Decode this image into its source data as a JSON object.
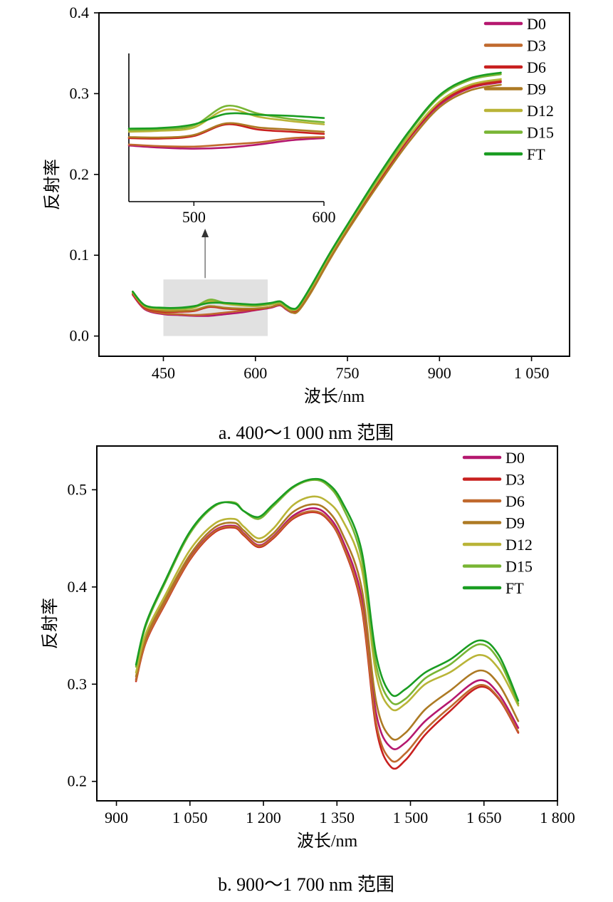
{
  "chart_data": [
    {
      "type": "line",
      "caption": "a. 400～1 000 nm 范围",
      "xlabel": "波长/nm",
      "ylabel": "反射率",
      "xlim": [
        345,
        1112
      ],
      "ylim": [
        -0.025,
        0.4
      ],
      "x_ticks": [
        450,
        600,
        750,
        900,
        1050
      ],
      "x_tick_labels": [
        "450",
        "600",
        "750",
        "900",
        "1 050"
      ],
      "y_ticks": [
        0.0,
        0.1,
        0.2,
        0.3,
        0.4
      ],
      "y_tick_labels": [
        "0.0",
        "0.1",
        "0.2",
        "0.3",
        "0.4"
      ],
      "legend": [
        "D0",
        "D3",
        "D6",
        "D9",
        "D12",
        "D15",
        "FT"
      ],
      "legend_position": "top-right",
      "colors": [
        "#b5186f",
        "#c0692d",
        "#c8201f",
        "#ad7a24",
        "#b9b437",
        "#78b534",
        "#1a9d22"
      ],
      "x": [
        400,
        420,
        450,
        475,
        500,
        525,
        550,
        575,
        600,
        625,
        640,
        650,
        660,
        670,
        690,
        720,
        750,
        800,
        850,
        900,
        950,
        1000
      ],
      "series": [
        {
          "name": "D0",
          "values": [
            0.051,
            0.033,
            0.027,
            0.026,
            0.025,
            0.025,
            0.027,
            0.029,
            0.032,
            0.035,
            0.038,
            0.033,
            0.029,
            0.032,
            0.055,
            0.095,
            0.132,
            0.19,
            0.244,
            0.286,
            0.307,
            0.314
          ]
        },
        {
          "name": "D3",
          "values": [
            0.052,
            0.034,
            0.028,
            0.027,
            0.026,
            0.027,
            0.029,
            0.031,
            0.033,
            0.036,
            0.039,
            0.034,
            0.03,
            0.033,
            0.056,
            0.096,
            0.133,
            0.191,
            0.245,
            0.288,
            0.309,
            0.316
          ]
        },
        {
          "name": "D6",
          "values": [
            0.052,
            0.035,
            0.03,
            0.03,
            0.031,
            0.036,
            0.034,
            0.033,
            0.033,
            0.036,
            0.039,
            0.034,
            0.03,
            0.033,
            0.056,
            0.096,
            0.133,
            0.191,
            0.245,
            0.288,
            0.308,
            0.315
          ]
        },
        {
          "name": "D9",
          "values": [
            0.053,
            0.036,
            0.031,
            0.031,
            0.032,
            0.037,
            0.035,
            0.034,
            0.034,
            0.036,
            0.039,
            0.034,
            0.029,
            0.031,
            0.053,
            0.093,
            0.13,
            0.187,
            0.24,
            0.283,
            0.304,
            0.311
          ]
        },
        {
          "name": "D12",
          "values": [
            0.054,
            0.037,
            0.033,
            0.033,
            0.035,
            0.043,
            0.04,
            0.038,
            0.037,
            0.039,
            0.041,
            0.036,
            0.032,
            0.035,
            0.058,
            0.098,
            0.135,
            0.193,
            0.247,
            0.29,
            0.311,
            0.318
          ]
        },
        {
          "name": "D15",
          "values": [
            0.055,
            0.038,
            0.034,
            0.034,
            0.036,
            0.045,
            0.041,
            0.039,
            0.038,
            0.04,
            0.042,
            0.037,
            0.033,
            0.036,
            0.06,
            0.1,
            0.137,
            0.196,
            0.251,
            0.296,
            0.317,
            0.324
          ]
        },
        {
          "name": "FT",
          "values": [
            0.055,
            0.038,
            0.035,
            0.035,
            0.037,
            0.041,
            0.041,
            0.04,
            0.039,
            0.041,
            0.043,
            0.038,
            0.034,
            0.037,
            0.061,
            0.101,
            0.138,
            0.198,
            0.253,
            0.298,
            0.319,
            0.326
          ]
        }
      ],
      "highlight_region": {
        "x": [
          450,
          620
        ],
        "y": [
          0.0,
          0.07
        ]
      },
      "inset": {
        "xlim": [
          450,
          600
        ],
        "ylim": [
          0.0,
          0.07
        ],
        "x_ticks": [
          500,
          600
        ],
        "x_tick_labels": [
          "500",
          "600"
        ],
        "x": [
          450,
          475,
          500,
          525,
          550,
          575,
          600
        ],
        "series": [
          {
            "name": "D0",
            "values": [
              0.0265,
              0.0255,
              0.025,
              0.0255,
              0.027,
              0.029,
              0.03
            ]
          },
          {
            "name": "D3",
            "values": [
              0.027,
              0.0262,
              0.026,
              0.027,
              0.028,
              0.03,
              0.0305
            ]
          },
          {
            "name": "D6",
            "values": [
              0.03,
              0.0298,
              0.031,
              0.0365,
              0.034,
              0.033,
              0.032
            ]
          },
          {
            "name": "D9",
            "values": [
              0.0305,
              0.0303,
              0.0315,
              0.037,
              0.035,
              0.034,
              0.033
            ]
          },
          {
            "name": "D12",
            "values": [
              0.033,
              0.0335,
              0.035,
              0.0435,
              0.04,
              0.038,
              0.0365
            ]
          },
          {
            "name": "D15",
            "values": [
              0.0338,
              0.0342,
              0.036,
              0.0452,
              0.0415,
              0.039,
              0.0375
            ]
          },
          {
            "name": "FT",
            "values": [
              0.0345,
              0.0348,
              0.0365,
              0.0415,
              0.041,
              0.0405,
              0.0395
            ]
          }
        ]
      }
    },
    {
      "type": "line",
      "caption": "b. 900～1 700 nm 范围",
      "xlabel": "波长/nm",
      "ylabel": "反射率",
      "xlim": [
        860,
        1800
      ],
      "ylim": [
        0.18,
        0.545
      ],
      "x_ticks": [
        900,
        1050,
        1200,
        1350,
        1500,
        1650,
        1800
      ],
      "x_tick_labels": [
        "900",
        "1 050",
        "1 200",
        "1 350",
        "1 500",
        "1 650",
        "1 800"
      ],
      "y_ticks": [
        0.2,
        0.3,
        0.4,
        0.5
      ],
      "y_tick_labels": [
        "0.2",
        "0.3",
        "0.4",
        "0.5"
      ],
      "legend": [
        "D0",
        "D3",
        "D6",
        "D9",
        "D12",
        "D15",
        "FT"
      ],
      "legend_position": "top-right",
      "colors": [
        "#b5186f",
        "#c8201f",
        "#c0692d",
        "#ad7a24",
        "#b9b437",
        "#78b534",
        "#1a9d22"
      ],
      "x": [
        940,
        960,
        1000,
        1050,
        1100,
        1140,
        1160,
        1190,
        1220,
        1260,
        1300,
        1330,
        1360,
        1400,
        1430,
        1460,
        1490,
        1530,
        1580,
        1640,
        1680,
        1720
      ],
      "series": [
        {
          "name": "D0",
          "values": [
            0.305,
            0.345,
            0.385,
            0.43,
            0.458,
            0.463,
            0.455,
            0.443,
            0.452,
            0.473,
            0.481,
            0.474,
            0.45,
            0.39,
            0.27,
            0.235,
            0.24,
            0.262,
            0.282,
            0.304,
            0.29,
            0.255
          ]
        },
        {
          "name": "D3",
          "values": [
            0.303,
            0.343,
            0.383,
            0.428,
            0.456,
            0.461,
            0.453,
            0.441,
            0.45,
            0.47,
            0.477,
            0.47,
            0.445,
            0.38,
            0.255,
            0.215,
            0.222,
            0.248,
            0.272,
            0.297,
            0.285,
            0.25
          ]
        },
        {
          "name": "D6",
          "values": [
            0.304,
            0.344,
            0.384,
            0.429,
            0.457,
            0.462,
            0.454,
            0.442,
            0.451,
            0.471,
            0.478,
            0.471,
            0.446,
            0.383,
            0.26,
            0.222,
            0.229,
            0.253,
            0.276,
            0.299,
            0.286,
            0.251
          ]
        },
        {
          "name": "D9",
          "values": [
            0.308,
            0.348,
            0.388,
            0.433,
            0.461,
            0.466,
            0.458,
            0.446,
            0.455,
            0.477,
            0.485,
            0.479,
            0.456,
            0.4,
            0.282,
            0.245,
            0.25,
            0.274,
            0.293,
            0.314,
            0.3,
            0.262
          ]
        },
        {
          "name": "D12",
          "values": [
            0.312,
            0.352,
            0.392,
            0.438,
            0.465,
            0.47,
            0.462,
            0.45,
            0.46,
            0.484,
            0.493,
            0.488,
            0.47,
            0.42,
            0.31,
            0.275,
            0.28,
            0.3,
            0.312,
            0.33,
            0.316,
            0.278
          ]
        },
        {
          "name": "D15",
          "values": [
            0.318,
            0.36,
            0.405,
            0.455,
            0.483,
            0.487,
            0.478,
            0.47,
            0.483,
            0.502,
            0.51,
            0.505,
            0.484,
            0.43,
            0.32,
            0.282,
            0.285,
            0.306,
            0.32,
            0.341,
            0.325,
            0.28
          ]
        },
        {
          "name": "FT",
          "values": [
            0.32,
            0.362,
            0.407,
            0.457,
            0.484,
            0.486,
            0.478,
            0.472,
            0.485,
            0.503,
            0.511,
            0.507,
            0.488,
            0.438,
            0.33,
            0.29,
            0.295,
            0.312,
            0.325,
            0.345,
            0.33,
            0.283
          ]
        }
      ]
    }
  ]
}
